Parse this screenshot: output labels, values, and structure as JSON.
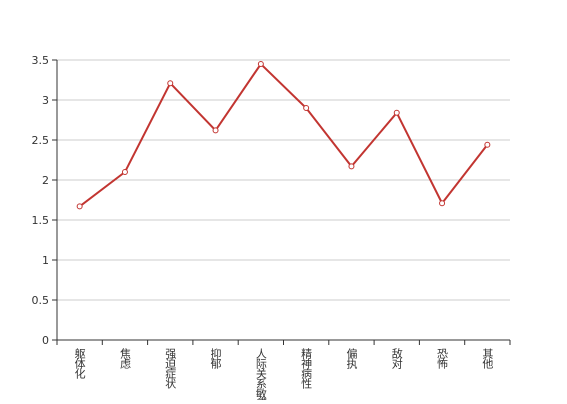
{
  "chart_data": {
    "type": "line",
    "categories": [
      "躯体化",
      "焦虑",
      "强迫症状",
      "抑郁",
      "人际关系敏感",
      "精神病性",
      "偏执",
      "敌对",
      "恐怖",
      "其他"
    ],
    "values": [
      1.67,
      2.1,
      3.21,
      2.62,
      3.45,
      2.9,
      2.17,
      2.84,
      1.71,
      2.44
    ],
    "color": "#c23531",
    "ylim": [
      0,
      3.5
    ],
    "yticks": [
      0,
      0.5,
      1,
      1.5,
      2,
      2.5,
      3,
      3.5
    ],
    "grid": true
  }
}
